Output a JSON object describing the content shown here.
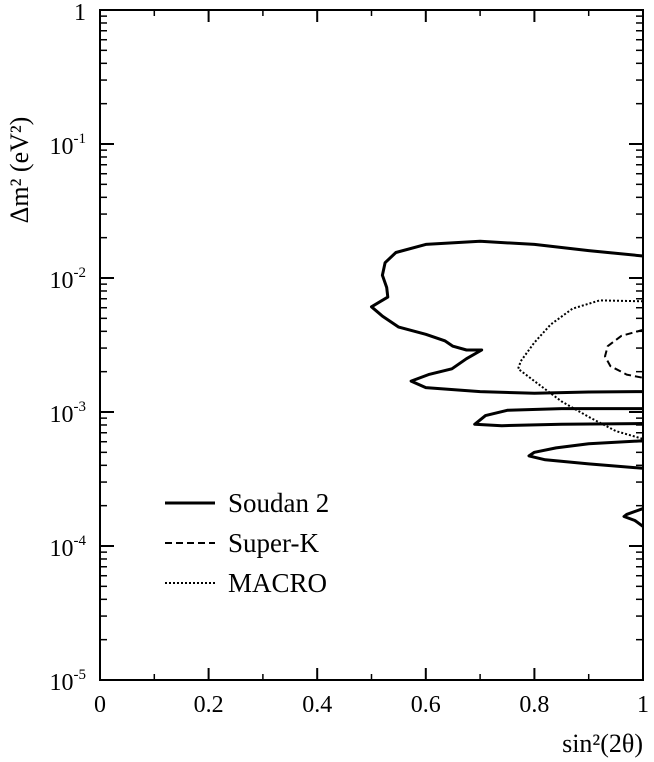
{
  "chart_data": {
    "type": "line",
    "xlabel": "sin²(2θ)",
    "ylabel": "Δm² (eV²)",
    "xlim": [
      0,
      1
    ],
    "ylim": [
      1e-05,
      1
    ],
    "yscale": "log",
    "grid": false,
    "legend_position": "bottom-left",
    "x_ticks": [
      "0",
      "0.2",
      "0.4",
      "0.6",
      "0.8",
      "1"
    ],
    "y_ticks": [
      {
        "base": "1",
        "exp": ""
      },
      {
        "base": "10",
        "exp": "-1"
      },
      {
        "base": "10",
        "exp": "-2"
      },
      {
        "base": "10",
        "exp": "-3"
      },
      {
        "base": "10",
        "exp": "-4"
      },
      {
        "base": "10",
        "exp": "-5"
      }
    ],
    "series": [
      {
        "name": "Soudan 2",
        "style": "solid",
        "color": "#000000",
        "contours": [
          [
            [
              1.0,
              0.0146
            ],
            [
              0.9,
              0.016
            ],
            [
              0.8,
              0.0178
            ],
            [
              0.7,
              0.0188
            ],
            [
              0.6,
              0.0178
            ],
            [
              0.545,
              0.0155
            ],
            [
              0.525,
              0.013
            ],
            [
              0.52,
              0.0105
            ],
            [
              0.528,
              0.0085
            ],
            [
              0.53,
              0.0072
            ],
            [
              0.5,
              0.0061
            ],
            [
              0.52,
              0.0052
            ],
            [
              0.55,
              0.0043
            ],
            [
              0.6,
              0.0038
            ],
            [
              0.635,
              0.0034
            ],
            [
              0.65,
              0.0031
            ],
            [
              0.675,
              0.0029
            ],
            [
              0.703,
              0.0029
            ],
            [
              0.675,
              0.0025
            ],
            [
              0.648,
              0.0021
            ],
            [
              0.605,
              0.0019
            ],
            [
              0.573,
              0.0017
            ],
            [
              0.6,
              0.00152
            ],
            [
              0.7,
              0.00142
            ],
            [
              0.8,
              0.00138
            ],
            [
              0.9,
              0.00141
            ],
            [
              1.0,
              0.00142
            ]
          ],
          [
            [
              1.0,
              0.00106
            ],
            [
              0.85,
              0.00106
            ],
            [
              0.75,
              0.00103
            ],
            [
              0.71,
              0.00094
            ],
            [
              0.69,
              0.00081
            ],
            [
              0.74,
              0.00079
            ],
            [
              0.85,
              0.00081
            ],
            [
              1.0,
              0.00082
            ]
          ],
          [
            [
              1.0,
              0.00061
            ],
            [
              0.9,
              0.00058
            ],
            [
              0.84,
              0.00054
            ],
            [
              0.8,
              0.0005
            ],
            [
              0.79,
              0.00047
            ],
            [
              0.82,
              0.00044
            ],
            [
              0.9,
              0.00041
            ],
            [
              1.0,
              0.00038
            ]
          ],
          [
            [
              1.0,
              0.00019
            ],
            [
              0.97,
              0.000172
            ],
            [
              0.965,
              0.000166
            ],
            [
              0.985,
              0.000155
            ],
            [
              1.0,
              0.00014
            ]
          ]
        ]
      },
      {
        "name": "Super-K",
        "style": "dashed",
        "color": "#000000",
        "contours": [
          [
            [
              1.0,
              0.0041
            ],
            [
              0.96,
              0.0037
            ],
            [
              0.935,
              0.0031
            ],
            [
              0.93,
              0.0026
            ],
            [
              0.94,
              0.0022
            ],
            [
              0.97,
              0.0019
            ],
            [
              1.0,
              0.0018
            ]
          ]
        ]
      },
      {
        "name": "MACRO",
        "style": "dotted",
        "color": "#000000",
        "contours": [
          [
            [
              1.0,
              0.0067
            ],
            [
              0.92,
              0.0068
            ],
            [
              0.87,
              0.0059
            ],
            [
              0.83,
              0.0045
            ],
            [
              0.8,
              0.0033
            ],
            [
              0.775,
              0.0024
            ],
            [
              0.77,
              0.0021
            ],
            [
              0.8,
              0.0017
            ],
            [
              0.85,
              0.0012
            ],
            [
              0.9,
              0.00092
            ],
            [
              0.95,
              0.00072
            ],
            [
              1.0,
              0.00063
            ]
          ]
        ]
      }
    ]
  }
}
